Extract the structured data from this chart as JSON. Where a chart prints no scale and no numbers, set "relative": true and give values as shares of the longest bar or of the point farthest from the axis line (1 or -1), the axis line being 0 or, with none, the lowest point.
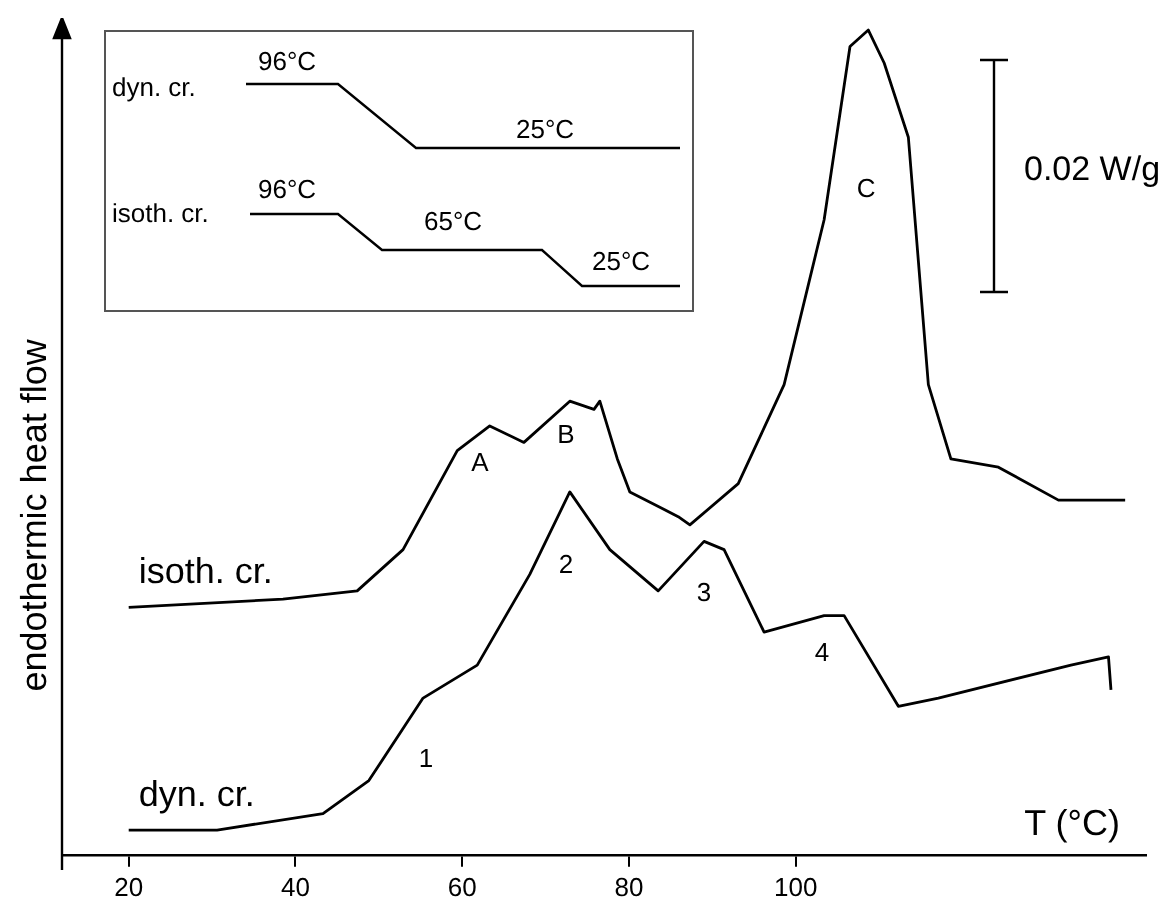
{
  "chart_data": {
    "type": "line",
    "relative": true,
    "xlabel": "T (°C)",
    "ylabel": "endothermic heat flow",
    "xlim": [
      12,
      142
    ],
    "xticks": [
      20,
      40,
      60,
      80,
      100
    ],
    "grid": false,
    "legend": false,
    "series": [
      {
        "name": "isoth. cr.",
        "color": "#000000",
        "x": [
          20,
          38.5,
          47.4,
          52.9,
          59.4,
          63.3,
          67.4,
          72.9,
          75.8,
          76.5,
          78.6,
          80.1,
          85.9,
          87.3,
          93.1,
          98.6,
          103.4,
          106.5,
          108.7,
          110.6,
          113.5,
          115.9,
          118.6,
          124.3,
          131.5,
          139.5
        ],
        "values": [
          0.3,
          0.31,
          0.32,
          0.37,
          0.49,
          0.52,
          0.5,
          0.55,
          0.54,
          0.55,
          0.48,
          0.44,
          0.41,
          0.4,
          0.45,
          0.57,
          0.77,
          0.98,
          1,
          0.96,
          0.87,
          0.57,
          0.48,
          0.47,
          0.43,
          0.43
        ]
      },
      {
        "name": "dyn. cr.",
        "color": "#000000",
        "x": [
          20,
          30.6,
          43.3,
          48.8,
          55.3,
          61.8,
          68.1,
          72.9,
          77.7,
          83.5,
          89,
          91.4,
          96.2,
          103.4,
          105.8,
          112.3,
          117.1,
          133,
          137.5,
          137.8
        ],
        "values": [
          0.03,
          0.03,
          0.05,
          0.09,
          0.19,
          0.23,
          0.34,
          0.44,
          0.37,
          0.32,
          0.38,
          0.37,
          0.27,
          0.29,
          0.29,
          0.18,
          0.19,
          0.23,
          0.24,
          0.2
        ]
      }
    ],
    "annotations": [
      "dyn. cr.",
      "96°C",
      "25°C",
      "isoth. cr.",
      "96°C",
      "65°C",
      "25°C",
      "0.02 W/g",
      "A",
      "B",
      "C",
      "1",
      "2",
      "3",
      "4"
    ]
  }
}
